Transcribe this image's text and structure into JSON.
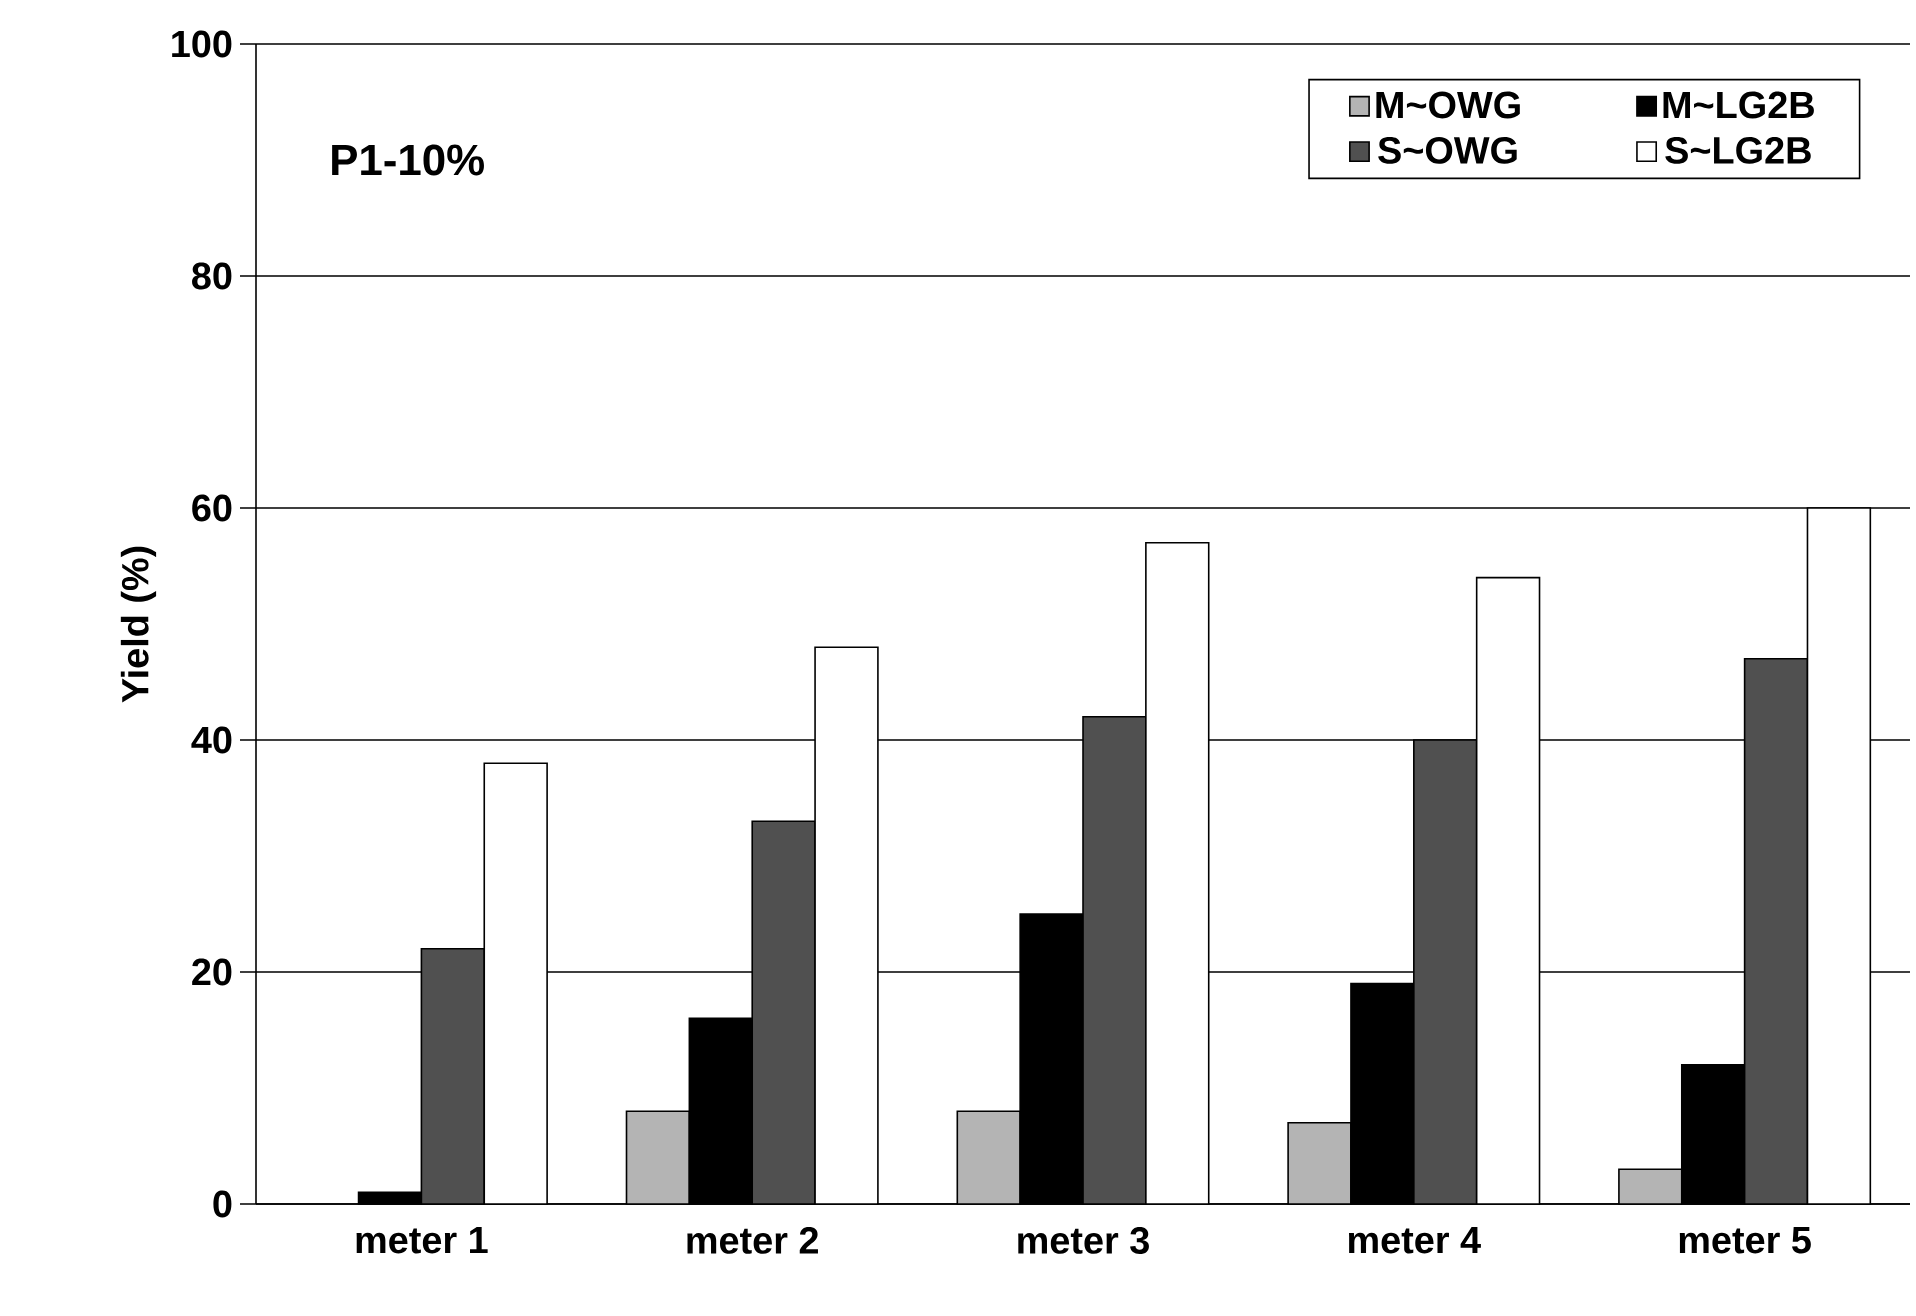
{
  "chart_data": {
    "type": "bar",
    "title": "P1-10%",
    "ylabel": "Yield (%)",
    "categories": [
      "meter 1",
      "meter 2",
      "meter 3",
      "meter 4",
      "meter 5"
    ],
    "series": [
      {
        "name": "M~OWG",
        "color": "#b4b4b4",
        "values": [
          null,
          8,
          8,
          7,
          3
        ]
      },
      {
        "name": "M~LG2B",
        "color": "#000000",
        "values": [
          1,
          16,
          25,
          19,
          12
        ]
      },
      {
        "name": "S~OWG",
        "color": "#505050",
        "values": [
          22,
          33,
          42,
          40,
          47
        ]
      },
      {
        "name": "S~LG2B",
        "color": "#ffffff",
        "values": [
          38,
          48,
          57,
          54,
          60
        ]
      }
    ],
    "ylim": [
      0,
      100
    ],
    "yticks": [
      0,
      20,
      40,
      60,
      80,
      100
    ],
    "grid": "y",
    "legend": "top right"
  }
}
